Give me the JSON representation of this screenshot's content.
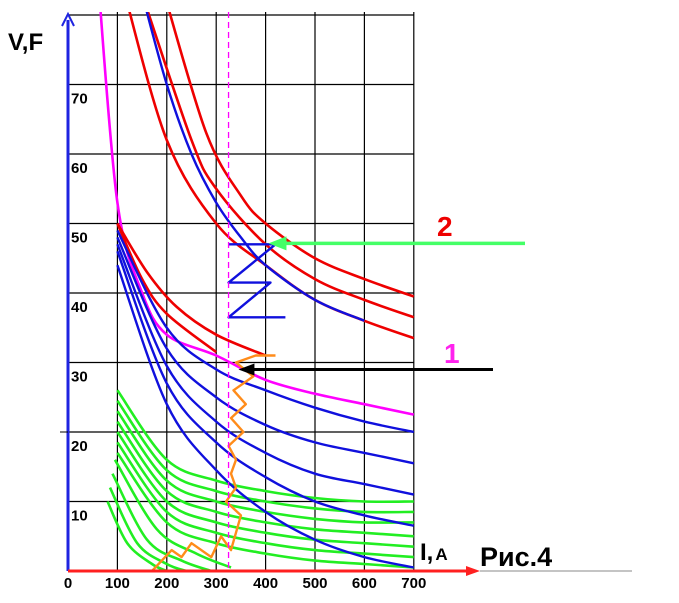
{
  "chart_data": {
    "type": "line",
    "title": "",
    "caption": "Рис.4",
    "xlabel": "I,",
    "xlabel_sub": "A",
    "ylabel": "V,F",
    "x_ticks": [
      "0",
      "100",
      "200",
      "300",
      "400",
      "500",
      "600",
      "700"
    ],
    "y_ticks": [
      "10",
      "20",
      "30",
      "40",
      "50",
      "60",
      "70"
    ],
    "xlim": [
      0,
      800
    ],
    "ylim": [
      0,
      80
    ],
    "grid": true,
    "colors": {
      "axes": "#1f24e0",
      "x_axis": "#ff2020",
      "magenta": "#ff00ff",
      "red": "#ee0000",
      "blue": "#1010dd",
      "green": "#22ee22",
      "orange": "#ff8c1a",
      "arrow1": "#000000",
      "arrow2": "#44ff66",
      "label1": "#ff22ee",
      "label2": "#ee0000"
    },
    "vertical_line_x": 325,
    "series": [
      {
        "group": "magenta",
        "points": [
          [
            60,
            86
          ],
          [
            100,
            53
          ],
          [
            150,
            40
          ],
          [
            200,
            34
          ],
          [
            300,
            31
          ],
          [
            400,
            27.5
          ],
          [
            500,
            25.5
          ],
          [
            600,
            24
          ],
          [
            700,
            22.5
          ]
        ]
      },
      {
        "group": "red",
        "points": [
          [
            115,
            83
          ],
          [
            200,
            62
          ],
          [
            300,
            50
          ],
          [
            400,
            44
          ],
          [
            500,
            39
          ],
          [
            600,
            36
          ],
          [
            700,
            33.5
          ]
        ]
      },
      {
        "group": "red",
        "points": [
          [
            150,
            83
          ],
          [
            250,
            62
          ],
          [
            300,
            55
          ],
          [
            400,
            47
          ],
          [
            500,
            42
          ],
          [
            600,
            39
          ],
          [
            700,
            36.5
          ]
        ]
      },
      {
        "group": "red",
        "points": [
          [
            195,
            83
          ],
          [
            280,
            63
          ],
          [
            350,
            54
          ],
          [
            400,
            50
          ],
          [
            500,
            45
          ],
          [
            600,
            42
          ],
          [
            700,
            39.5
          ]
        ]
      },
      {
        "group": "red",
        "points": [
          [
            100,
            50
          ],
          [
            150,
            42
          ],
          [
            200,
            37
          ],
          [
            300,
            31.5
          ]
        ]
      },
      {
        "group": "red",
        "points": [
          [
            100,
            50
          ],
          [
            160,
            43
          ],
          [
            220,
            38
          ],
          [
            300,
            34
          ],
          [
            400,
            31
          ]
        ]
      },
      {
        "group": "blue",
        "points": [
          [
            150,
            83
          ],
          [
            200,
            70
          ],
          [
            250,
            60
          ],
          [
            300,
            53
          ],
          [
            350,
            48
          ],
          [
            400,
            44
          ],
          [
            500,
            39
          ],
          [
            600,
            36
          ]
        ]
      },
      {
        "group": "blue",
        "points": [
          [
            100,
            49
          ],
          [
            200,
            35
          ],
          [
            300,
            29
          ],
          [
            400,
            26
          ],
          [
            500,
            23.5
          ],
          [
            600,
            21.5
          ],
          [
            700,
            20
          ]
        ]
      },
      {
        "group": "blue",
        "points": [
          [
            100,
            48
          ],
          [
            200,
            32
          ],
          [
            300,
            25
          ],
          [
            400,
            21
          ],
          [
            500,
            18.5
          ],
          [
            600,
            17
          ],
          [
            700,
            15.5
          ]
        ]
      },
      {
        "group": "blue",
        "points": [
          [
            100,
            47
          ],
          [
            200,
            29.5
          ],
          [
            300,
            21.5
          ],
          [
            400,
            17
          ],
          [
            500,
            14
          ],
          [
            600,
            12.5
          ],
          [
            700,
            11
          ]
        ]
      },
      {
        "group": "blue",
        "points": [
          [
            100,
            46
          ],
          [
            200,
            27
          ],
          [
            300,
            18.5
          ],
          [
            400,
            13.5
          ],
          [
            500,
            10
          ],
          [
            600,
            8
          ],
          [
            700,
            6.5
          ]
        ]
      },
      {
        "group": "blue",
        "points": [
          [
            100,
            44
          ],
          [
            200,
            24
          ],
          [
            300,
            14.5
          ],
          [
            400,
            8.5
          ],
          [
            500,
            4.5
          ],
          [
            600,
            2
          ],
          [
            700,
            0.5
          ]
        ]
      },
      {
        "group": "green",
        "points": [
          [
            100,
            26
          ],
          [
            200,
            16
          ],
          [
            300,
            13
          ],
          [
            400,
            11.5
          ],
          [
            500,
            10.5
          ],
          [
            600,
            10
          ],
          [
            700,
            10
          ]
        ]
      },
      {
        "group": "green",
        "points": [
          [
            100,
            24.5
          ],
          [
            200,
            14.5
          ],
          [
            300,
            11.5
          ],
          [
            400,
            10
          ],
          [
            500,
            9
          ],
          [
            600,
            8.5
          ],
          [
            700,
            8.5
          ]
        ]
      },
      {
        "group": "green",
        "points": [
          [
            100,
            23
          ],
          [
            200,
            13
          ],
          [
            300,
            10
          ],
          [
            400,
            8.5
          ],
          [
            500,
            7.5
          ],
          [
            600,
            7
          ],
          [
            700,
            7
          ]
        ]
      },
      {
        "group": "green",
        "points": [
          [
            100,
            21.5
          ],
          [
            200,
            11.5
          ],
          [
            300,
            8.5
          ],
          [
            400,
            7
          ],
          [
            500,
            6
          ],
          [
            600,
            5.5
          ],
          [
            700,
            5
          ]
        ]
      },
      {
        "group": "green",
        "points": [
          [
            100,
            20
          ],
          [
            200,
            10
          ],
          [
            300,
            7
          ],
          [
            400,
            5.5
          ],
          [
            500,
            4.5
          ],
          [
            600,
            4
          ],
          [
            700,
            3.5
          ]
        ]
      },
      {
        "group": "green",
        "points": [
          [
            100,
            18.5
          ],
          [
            200,
            8.5
          ],
          [
            300,
            5.5
          ],
          [
            400,
            4
          ],
          [
            500,
            3
          ],
          [
            600,
            2.5
          ],
          [
            700,
            2
          ]
        ]
      },
      {
        "group": "green",
        "points": [
          [
            100,
            17
          ],
          [
            200,
            7
          ],
          [
            300,
            4
          ],
          [
            400,
            2.5
          ],
          [
            500,
            1.5
          ],
          [
            600,
            1
          ],
          [
            700,
            0.5
          ]
        ]
      },
      {
        "group": "green",
        "points": [
          [
            95,
            16
          ],
          [
            180,
            6
          ],
          [
            260,
            2.5
          ],
          [
            330,
            0.5
          ]
        ]
      },
      {
        "group": "green",
        "points": [
          [
            90,
            14
          ],
          [
            160,
            4.5
          ],
          [
            230,
            1.5
          ],
          [
            290,
            0
          ]
        ]
      },
      {
        "group": "green",
        "points": [
          [
            85,
            12
          ],
          [
            140,
            4
          ],
          [
            200,
            1
          ],
          [
            240,
            0
          ]
        ]
      },
      {
        "group": "green",
        "points": [
          [
            80,
            10
          ],
          [
            120,
            4
          ],
          [
            170,
            1
          ],
          [
            200,
            0
          ]
        ]
      },
      {
        "group": "orange",
        "points": [
          [
            170,
            0
          ],
          [
            210,
            3
          ],
          [
            230,
            2
          ],
          [
            250,
            4
          ],
          [
            290,
            2
          ],
          [
            310,
            5
          ],
          [
            330,
            3
          ],
          [
            350,
            8
          ],
          [
            320,
            10
          ],
          [
            340,
            12
          ],
          [
            330,
            14
          ],
          [
            340,
            16
          ],
          [
            325,
            18
          ],
          [
            355,
            20
          ],
          [
            330,
            22
          ],
          [
            360,
            24
          ],
          [
            335,
            26
          ],
          [
            375,
            28
          ],
          [
            340,
            30
          ],
          [
            380,
            31
          ],
          [
            420,
            31
          ]
        ]
      },
      {
        "group": "blue",
        "points": [
          [
            325,
            47
          ],
          [
            420,
            47
          ],
          [
            325,
            41.5
          ],
          [
            410,
            41.5
          ],
          [
            325,
            36.5
          ],
          [
            440,
            36.5
          ]
        ]
      }
    ],
    "annotations": [
      {
        "text": "1",
        "target": [
          345,
          29
        ],
        "color_key": "label1"
      },
      {
        "text": "2",
        "target": [
          420,
          47
        ],
        "color_key": "label2"
      }
    ]
  }
}
